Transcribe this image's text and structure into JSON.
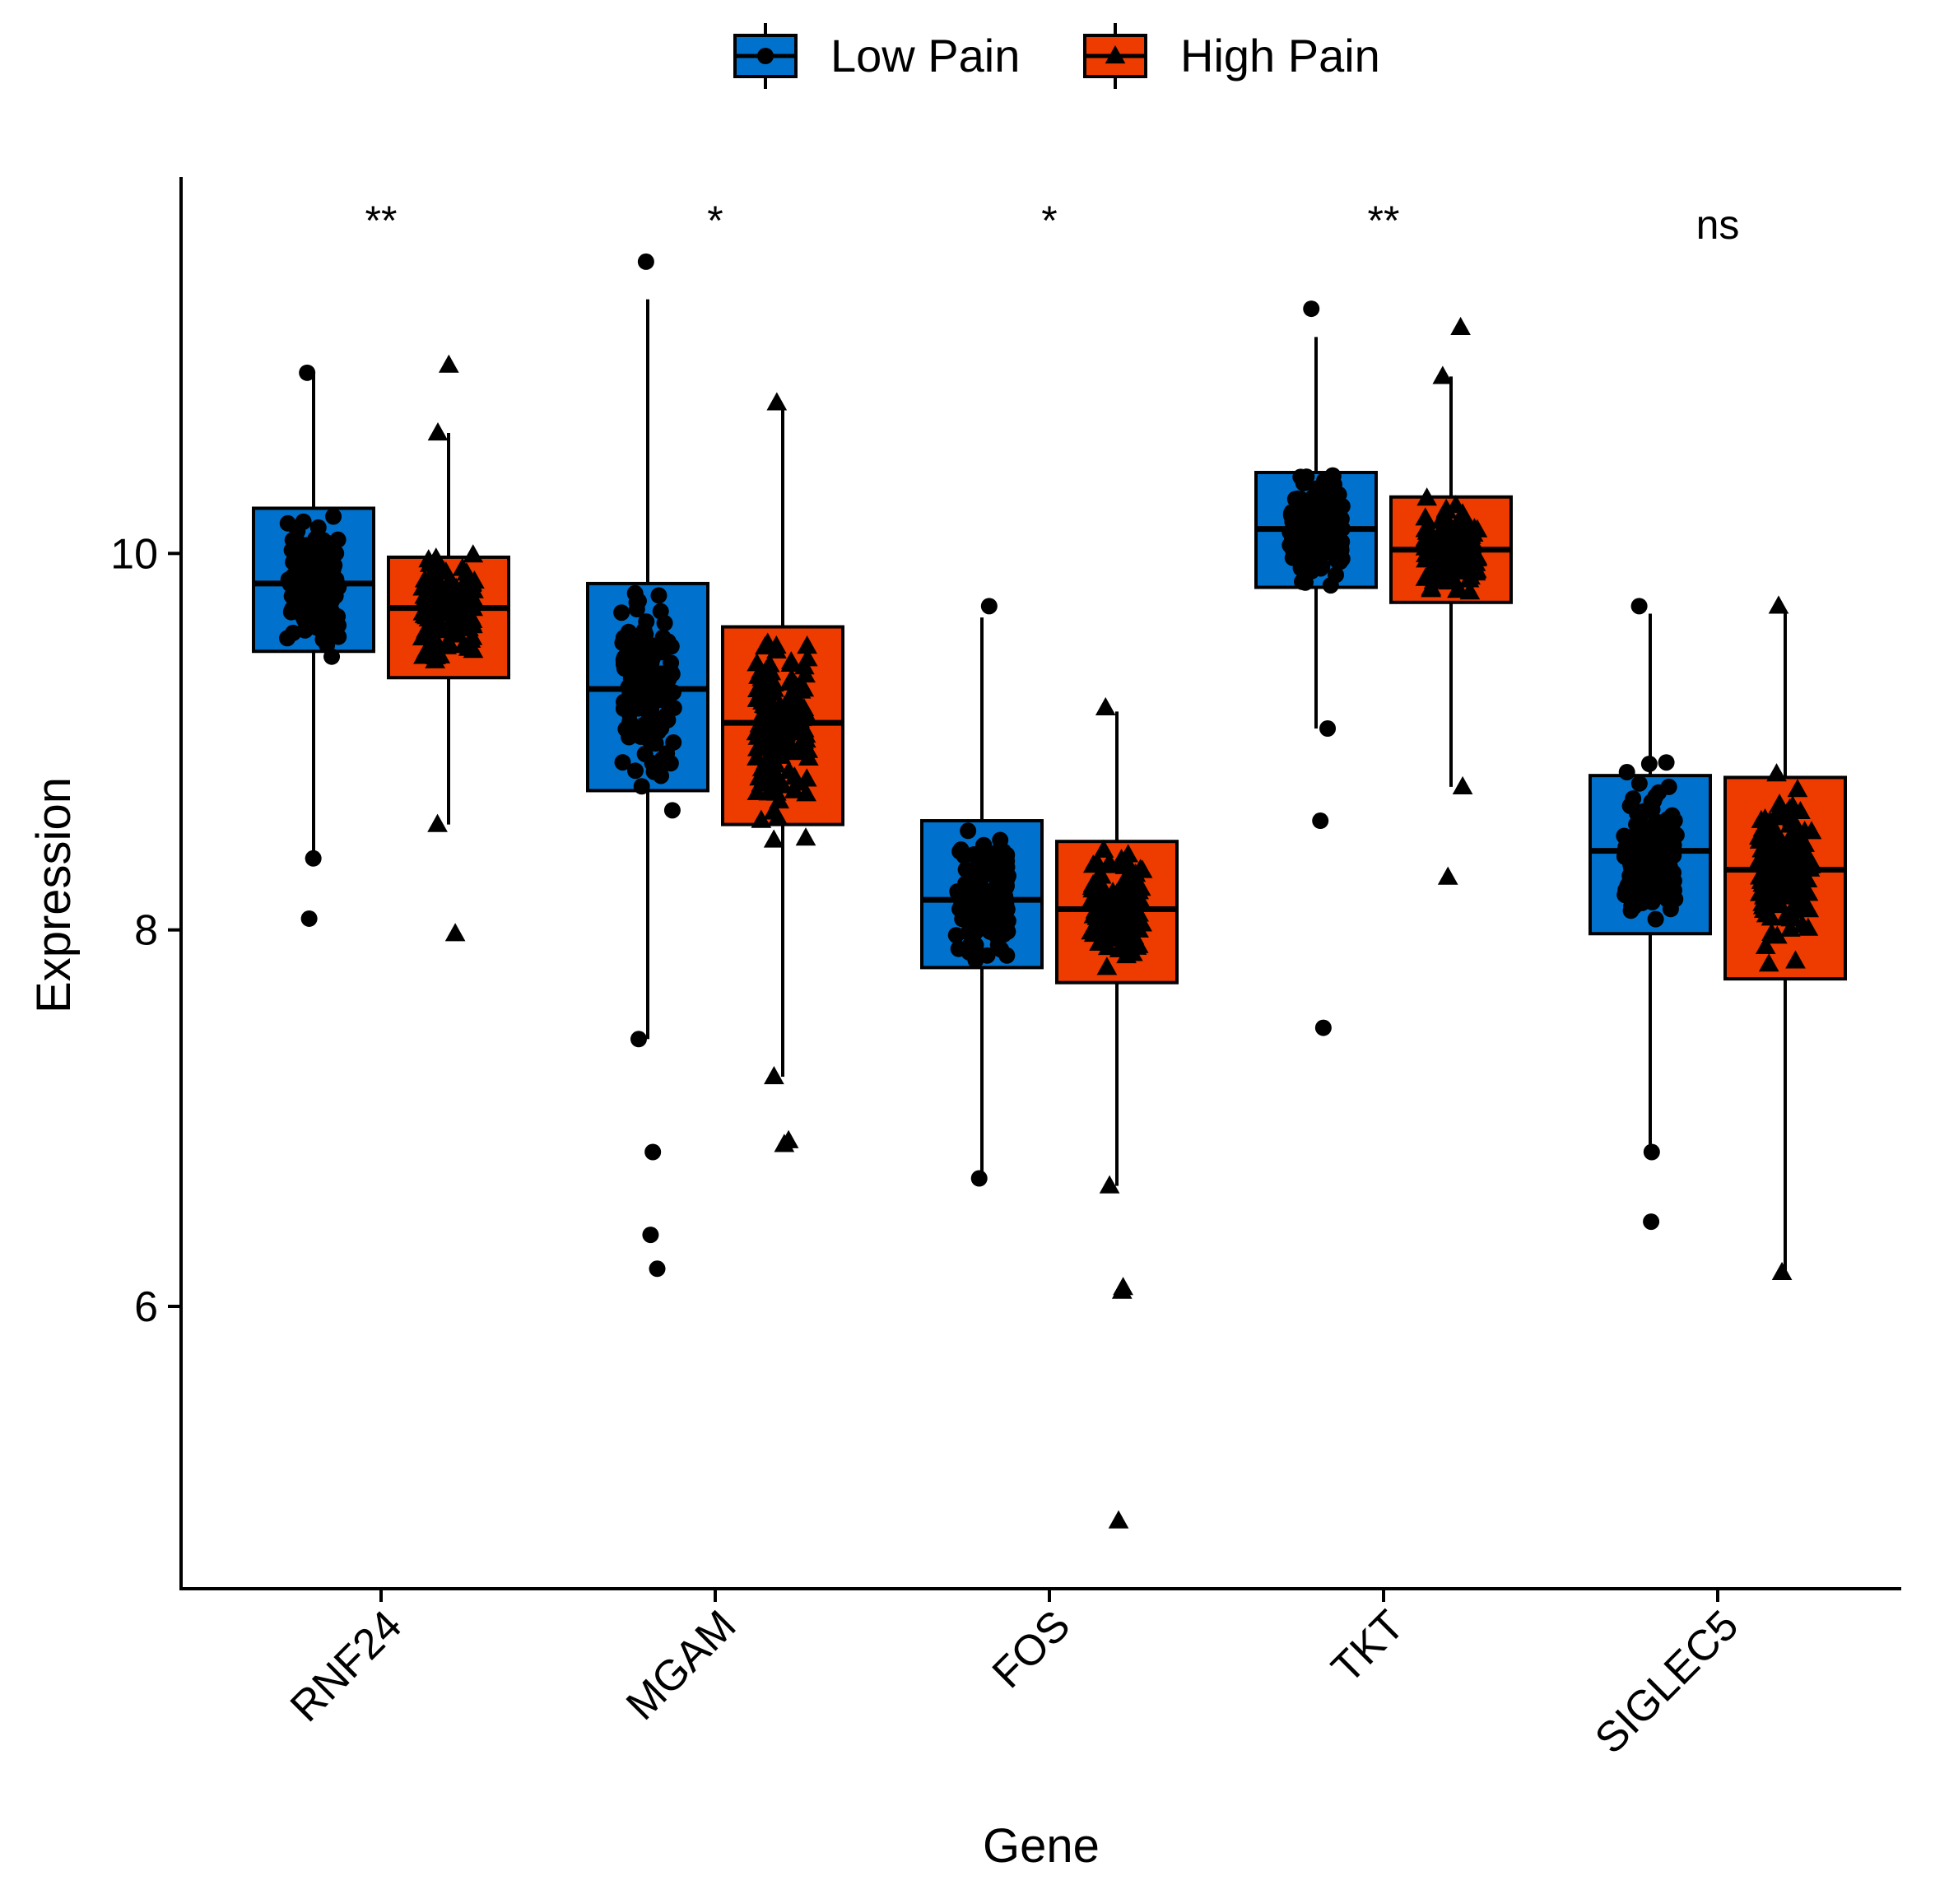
{
  "chart_data": {
    "type": "boxplot",
    "title": "",
    "xlabel": "Gene",
    "ylabel": "Expression",
    "ylim": [
      4.5,
      12.0
    ],
    "yticks": [
      6,
      8,
      10
    ],
    "ytick_labels": [
      "6",
      "8",
      "10"
    ],
    "legend_position": "top",
    "categories": [
      "RNF24",
      "MGAM",
      "FOS",
      "TKT",
      "SIGLEC5"
    ],
    "significance": [
      "**",
      "*",
      "*",
      "**",
      "ns"
    ],
    "series": [
      {
        "name": "Low Pain",
        "color": "#0072CE",
        "marker": "circle",
        "boxes": [
          {
            "q1": 9.48,
            "median": 9.84,
            "q3": 10.24,
            "whisker_low": 8.38,
            "whisker_high": 10.96
          },
          {
            "q1": 8.74,
            "median": 9.28,
            "q3": 9.84,
            "whisker_low": 7.42,
            "whisker_high": 11.35
          },
          {
            "q1": 7.8,
            "median": 8.16,
            "q3": 8.58,
            "whisker_low": 6.68,
            "whisker_high": 9.66
          },
          {
            "q1": 9.82,
            "median": 10.13,
            "q3": 10.43,
            "whisker_low": 9.07,
            "whisker_high": 11.15
          },
          {
            "q1": 7.98,
            "median": 8.42,
            "q3": 8.82,
            "whisker_low": 6.82,
            "whisker_high": 9.68
          }
        ],
        "outliers": [
          [
            8.06
          ],
          [
            6.82,
            6.38,
            6.2
          ],
          [],
          [
            8.58,
            7.48
          ],
          [
            6.45
          ]
        ],
        "range_min": [
          8.38,
          7.42,
          6.68,
          9.07,
          6.82
        ],
        "range_max": [
          10.96,
          11.55,
          9.72,
          11.3,
          9.72
        ]
      },
      {
        "name": "High Pain",
        "color": "#EE3B00",
        "marker": "triangle",
        "boxes": [
          {
            "q1": 9.34,
            "median": 9.71,
            "q3": 9.98,
            "whisker_low": 8.56,
            "whisker_high": 10.64
          },
          {
            "q1": 8.56,
            "median": 9.1,
            "q3": 9.61,
            "whisker_low": 7.22,
            "whisker_high": 10.78
          },
          {
            "q1": 7.72,
            "median": 8.11,
            "q3": 8.47,
            "whisker_low": 6.64,
            "whisker_high": 9.16
          },
          {
            "q1": 9.74,
            "median": 10.02,
            "q3": 10.3,
            "whisker_low": 8.76,
            "whisker_high": 10.94
          },
          {
            "q1": 7.74,
            "median": 8.32,
            "q3": 8.81,
            "whisker_low": 6.18,
            "whisker_high": 9.7
          }
        ],
        "outliers": [
          [
            11.0,
            7.98
          ],
          [
            6.88,
            6.86
          ],
          [
            6.1,
            6.08,
            4.86
          ],
          [
            8.28,
            11.2
          ],
          []
        ],
        "range_min": [
          8.56,
          7.22,
          6.64,
          8.76,
          6.18
        ],
        "range_max": [
          10.64,
          10.8,
          9.18,
          10.94,
          9.72
        ]
      }
    ]
  }
}
